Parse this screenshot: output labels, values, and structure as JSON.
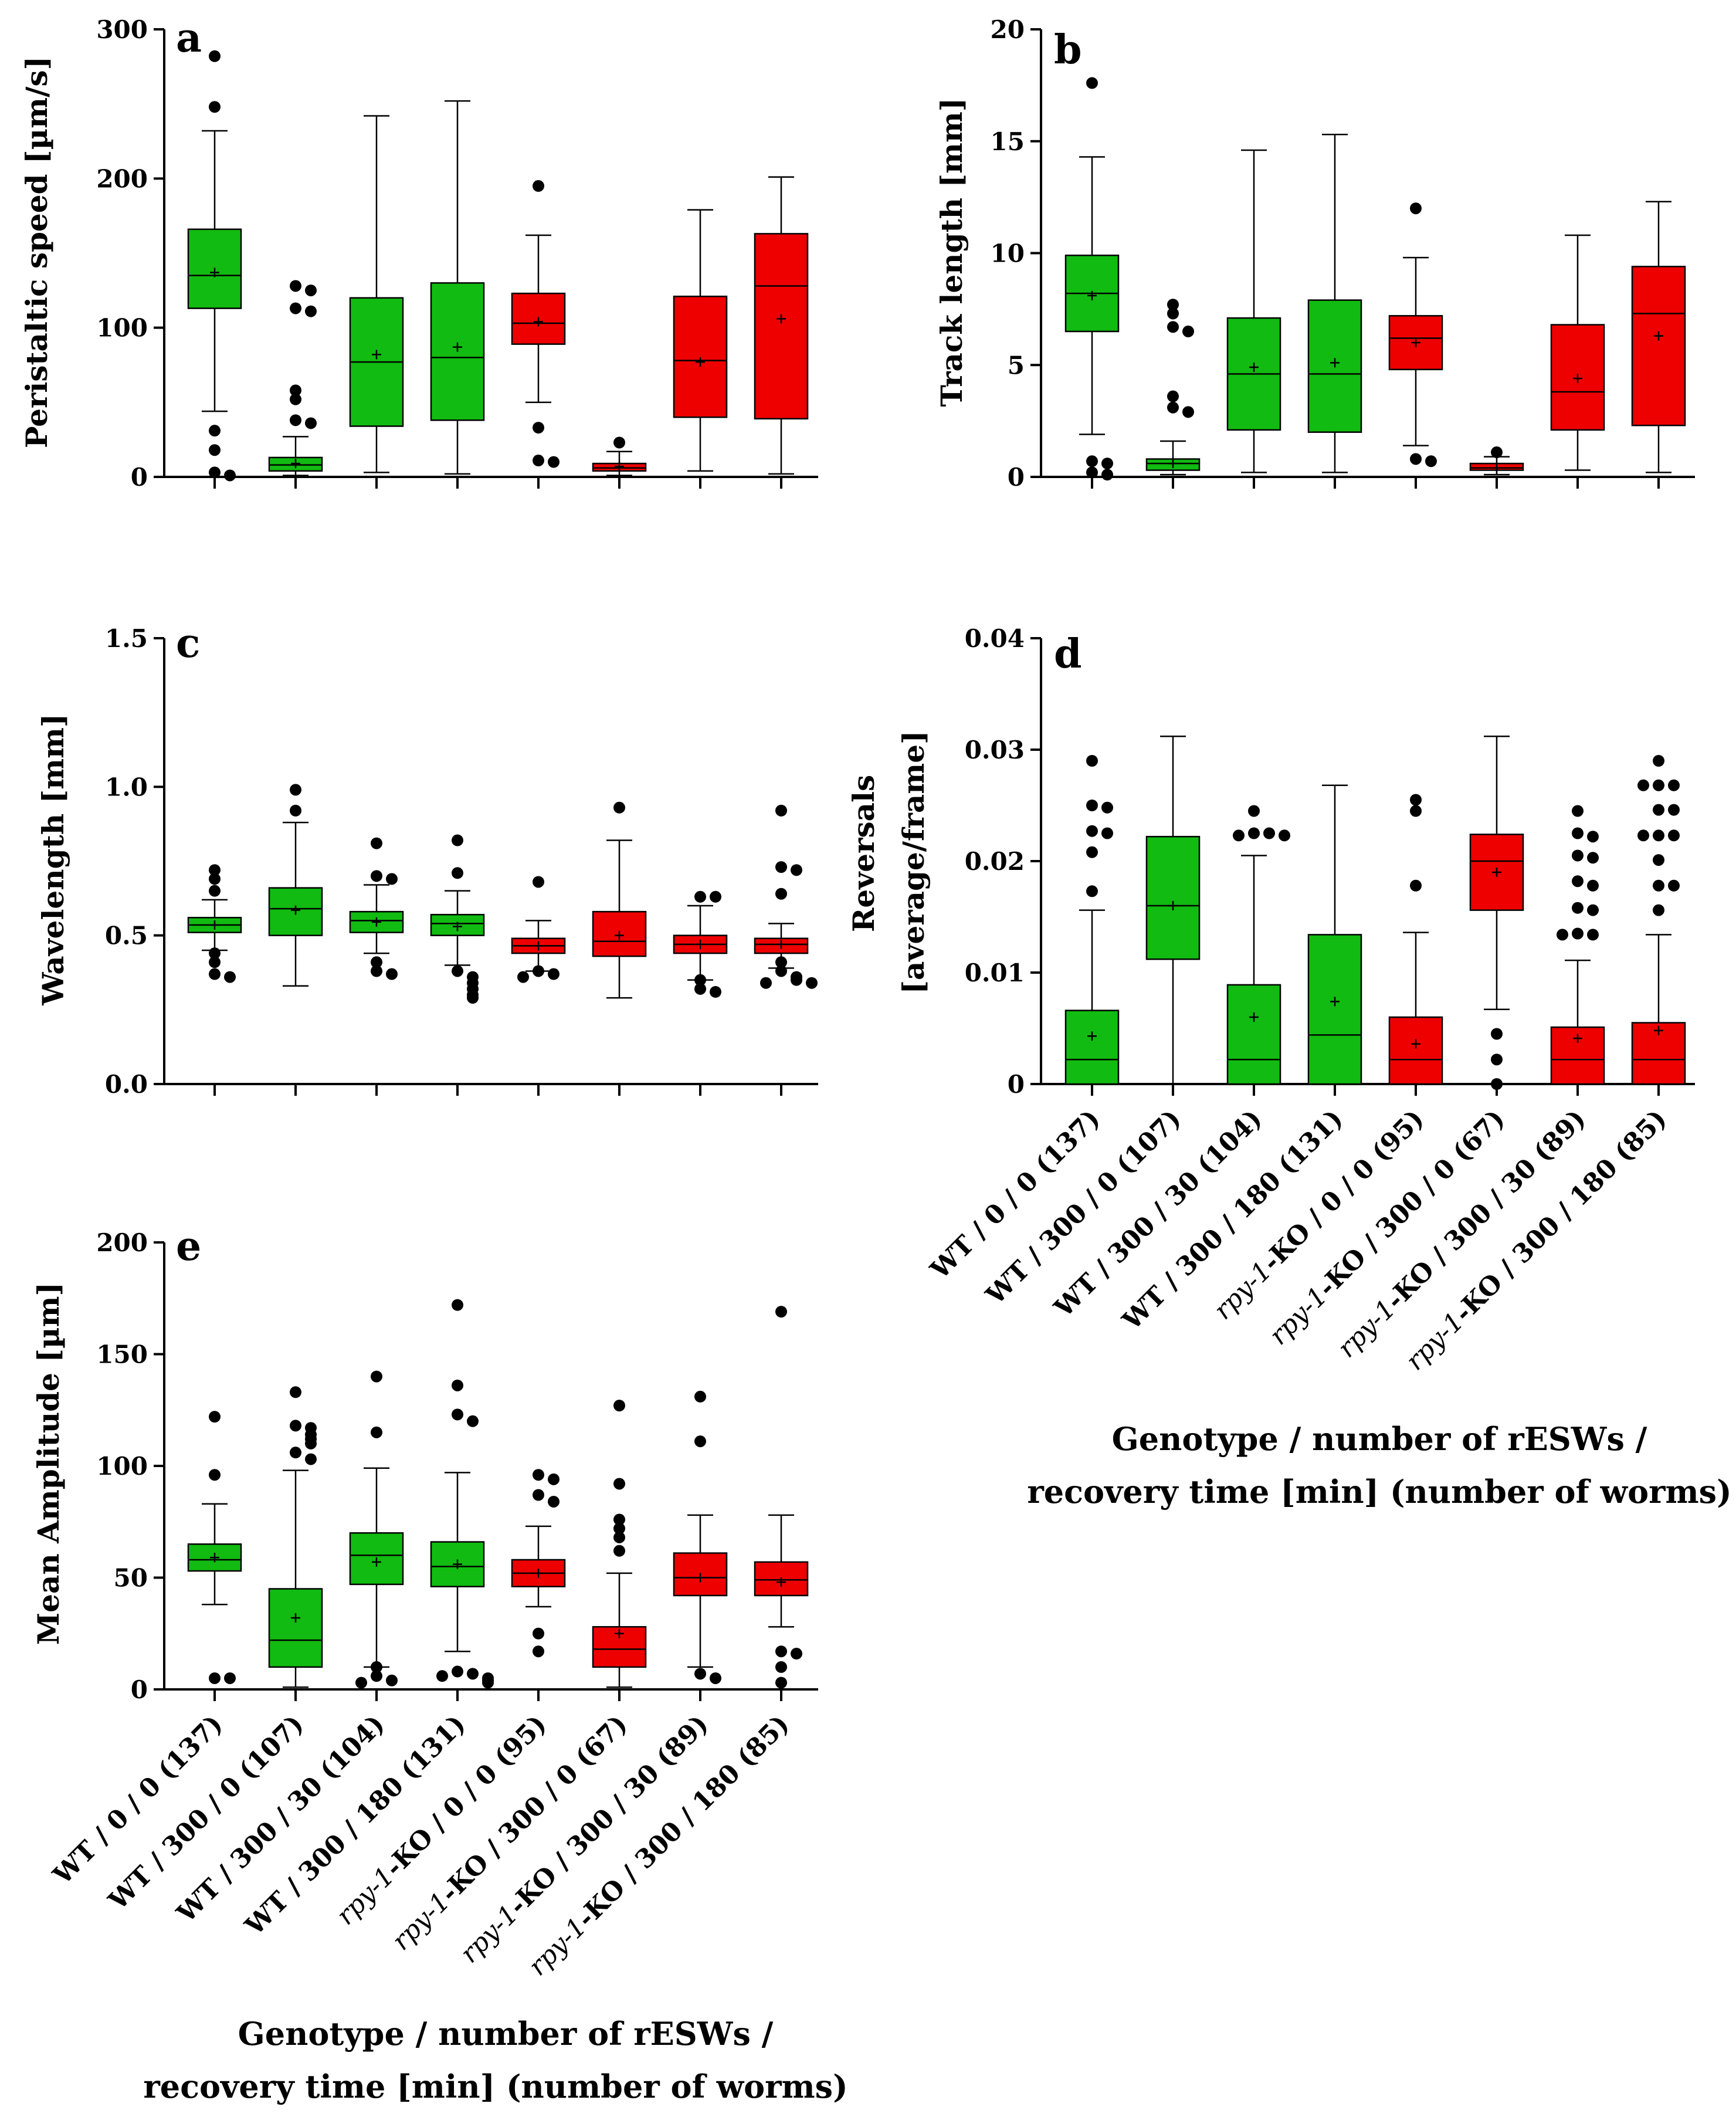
{
  "colors": {
    "green": "#11bb11",
    "red": "#ee0000",
    "wt": "green",
    "ko": "red"
  },
  "categories": [
    "WT / 0 / 0 (137)",
    "WT / 300 / 0 (107)",
    "WT / 300 / 30 (104)",
    "WT / 300 / 180 (131)",
    "rpy-1-KO / 0 / 0 (95)",
    "rpy-1-KO / 300 / 0 (67)",
    "rpy-1-KO / 300 / 30 (89)",
    "rpy-1-KO / 300 / 180 (85)"
  ],
  "category_groups": [
    "WT",
    "WT",
    "WT",
    "WT",
    "KO",
    "KO",
    "KO",
    "KO"
  ],
  "xlabel_lines": [
    "Genotype / number of rESWs /",
    "recovery time [min] (number of worms)"
  ],
  "chart_data": [
    {
      "type": "box",
      "panel": "a",
      "ylabel": [
        "Peristaltic speed [µm/s]"
      ],
      "ylim": [
        0,
        300
      ],
      "yticks": [
        0,
        100,
        200,
        300
      ],
      "grid": false,
      "series": [
        {
          "q1": 113,
          "median": 135,
          "q3": 166,
          "mean": 137,
          "wlo": 44,
          "whi": 232,
          "outliers": [
            282,
            248,
            31,
            18,
            3,
            1
          ]
        },
        {
          "q1": 4,
          "median": 8,
          "q3": 13,
          "mean": 9,
          "wlo": 1,
          "whi": 27,
          "outliers": [
            128,
            125,
            113,
            111,
            58,
            52,
            38,
            36
          ]
        },
        {
          "q1": 34,
          "median": 77,
          "q3": 120,
          "mean": 82,
          "wlo": 3,
          "whi": 242,
          "outliers": []
        },
        {
          "q1": 38,
          "median": 80,
          "q3": 130,
          "mean": 87,
          "wlo": 2,
          "whi": 252,
          "outliers": []
        },
        {
          "q1": 89,
          "median": 103,
          "q3": 123,
          "mean": 104,
          "wlo": 50,
          "whi": 162,
          "outliers": [
            195,
            33,
            11,
            10
          ]
        },
        {
          "q1": 4,
          "median": 6,
          "q3": 9,
          "mean": 7,
          "wlo": 1,
          "whi": 17,
          "outliers": [
            23
          ]
        },
        {
          "q1": 40,
          "median": 78,
          "q3": 121,
          "mean": 77,
          "wlo": 4,
          "whi": 179,
          "outliers": []
        },
        {
          "q1": 39,
          "median": 128,
          "q3": 163,
          "mean": 106,
          "wlo": 2,
          "whi": 201,
          "outliers": []
        }
      ]
    },
    {
      "type": "box",
      "panel": "b",
      "ylabel": [
        "Track length [mm]"
      ],
      "ylim": [
        0,
        20
      ],
      "yticks": [
        0,
        5,
        10,
        15,
        20
      ],
      "grid": false,
      "series": [
        {
          "q1": 6.5,
          "median": 8.2,
          "q3": 9.9,
          "mean": 8.1,
          "wlo": 1.9,
          "whi": 14.3,
          "outliers": [
            17.6,
            0.7,
            0.6,
            0.2,
            0.1
          ]
        },
        {
          "q1": 0.3,
          "median": 0.6,
          "q3": 0.8,
          "mean": 0.6,
          "wlo": 0.1,
          "whi": 1.6,
          "outliers": [
            7.7,
            7.3,
            6.7,
            6.5,
            3.6,
            3.1,
            2.9
          ]
        },
        {
          "q1": 2.1,
          "median": 4.6,
          "q3": 7.1,
          "mean": 4.9,
          "wlo": 0.2,
          "whi": 14.6,
          "outliers": []
        },
        {
          "q1": 2.0,
          "median": 4.6,
          "q3": 7.9,
          "mean": 5.1,
          "wlo": 0.2,
          "whi": 15.3,
          "outliers": []
        },
        {
          "q1": 4.8,
          "median": 6.2,
          "q3": 7.2,
          "mean": 6.0,
          "wlo": 1.4,
          "whi": 9.8,
          "outliers": [
            12.0,
            0.8,
            0.7
          ]
        },
        {
          "q1": 0.3,
          "median": 0.4,
          "q3": 0.6,
          "mean": 0.4,
          "wlo": 0.1,
          "whi": 0.9,
          "outliers": [
            1.1
          ]
        },
        {
          "q1": 2.1,
          "median": 3.8,
          "q3": 6.8,
          "mean": 4.4,
          "wlo": 0.3,
          "whi": 10.8,
          "outliers": []
        },
        {
          "q1": 2.3,
          "median": 7.3,
          "q3": 9.4,
          "mean": 6.3,
          "wlo": 0.2,
          "whi": 12.3,
          "outliers": []
        }
      ]
    },
    {
      "type": "box",
      "panel": "c",
      "ylabel": [
        "Wavelength [mm]"
      ],
      "ylim": [
        0,
        1.5
      ],
      "yticks": [
        0.0,
        0.5,
        1.0,
        1.5
      ],
      "ytick_labels": [
        "0.0",
        "0.5",
        "1.0",
        "1.5"
      ],
      "grid": false,
      "series": [
        {
          "q1": 0.51,
          "median": 0.535,
          "q3": 0.56,
          "mean": 0.535,
          "wlo": 0.45,
          "whi": 0.62,
          "outliers": [
            0.72,
            0.69,
            0.65,
            0.44,
            0.41,
            0.37,
            0.36
          ]
        },
        {
          "q1": 0.5,
          "median": 0.59,
          "q3": 0.66,
          "mean": 0.585,
          "wlo": 0.33,
          "whi": 0.88,
          "outliers": [
            0.99,
            0.92
          ]
        },
        {
          "q1": 0.51,
          "median": 0.55,
          "q3": 0.58,
          "mean": 0.545,
          "wlo": 0.44,
          "whi": 0.67,
          "outliers": [
            0.81,
            0.7,
            0.69,
            0.41,
            0.38,
            0.37
          ]
        },
        {
          "q1": 0.5,
          "median": 0.54,
          "q3": 0.57,
          "mean": 0.53,
          "wlo": 0.4,
          "whi": 0.65,
          "outliers": [
            0.82,
            0.71,
            0.38,
            0.36,
            0.34,
            0.32,
            0.3,
            0.29
          ]
        },
        {
          "q1": 0.44,
          "median": 0.465,
          "q3": 0.49,
          "mean": 0.465,
          "wlo": 0.38,
          "whi": 0.55,
          "outliers": [
            0.68,
            0.38,
            0.37,
            0.36
          ]
        },
        {
          "q1": 0.43,
          "median": 0.48,
          "q3": 0.58,
          "mean": 0.5,
          "wlo": 0.29,
          "whi": 0.82,
          "outliers": [
            0.93
          ]
        },
        {
          "q1": 0.44,
          "median": 0.47,
          "q3": 0.5,
          "mean": 0.47,
          "wlo": 0.35,
          "whi": 0.6,
          "outliers": [
            0.63,
            0.63,
            0.35,
            0.32,
            0.31
          ]
        },
        {
          "q1": 0.44,
          "median": 0.47,
          "q3": 0.49,
          "mean": 0.47,
          "wlo": 0.39,
          "whi": 0.54,
          "outliers": [
            0.92,
            0.73,
            0.72,
            0.64,
            0.41,
            0.38,
            0.36,
            0.35,
            0.34,
            0.34
          ]
        }
      ]
    },
    {
      "type": "box",
      "panel": "d",
      "ylabel": [
        "Reversals",
        "[average/frame]"
      ],
      "ylim": [
        0,
        0.04
      ],
      "yticks": [
        0,
        0.01,
        0.02,
        0.03,
        0.04
      ],
      "ytick_labels": [
        "0",
        "0.01",
        "0.02",
        "0.03",
        "0.04"
      ],
      "grid": false,
      "series": [
        {
          "q1": 0.0,
          "median": 0.0022,
          "q3": 0.0066,
          "mean": 0.0043,
          "wlo": 0.0,
          "whi": 0.0156,
          "outliers": [
            0.029,
            0.025,
            0.0248,
            0.0227,
            0.0225,
            0.0208,
            0.0173
          ]
        },
        {
          "q1": 0.0112,
          "median": 0.016,
          "q3": 0.0222,
          "mean": 0.016,
          "wlo": 0.0,
          "whi": 0.0312,
          "outliers": []
        },
        {
          "q1": 0.0,
          "median": 0.0022,
          "q3": 0.0089,
          "mean": 0.006,
          "wlo": 0.0,
          "whi": 0.0205,
          "outliers": [
            0.0245,
            0.0225,
            0.0225,
            0.0223,
            0.0223
          ]
        },
        {
          "q1": 0.0,
          "median": 0.0044,
          "q3": 0.0134,
          "mean": 0.0074,
          "wlo": 0.0,
          "whi": 0.0268,
          "outliers": []
        },
        {
          "q1": 0.0,
          "median": 0.0022,
          "q3": 0.006,
          "mean": 0.0036,
          "wlo": 0.0,
          "whi": 0.0136,
          "outliers": [
            0.0255,
            0.0245,
            0.0178
          ]
        },
        {
          "q1": 0.0156,
          "median": 0.02,
          "q3": 0.0224,
          "mean": 0.019,
          "wlo": 0.0067,
          "whi": 0.0312,
          "outliers": [
            0.0045,
            0.0022,
            0.0
          ]
        },
        {
          "q1": 0.0,
          "median": 0.0022,
          "q3": 0.0051,
          "mean": 0.0041,
          "wlo": 0.0,
          "whi": 0.0111,
          "outliers": [
            0.0245,
            0.0225,
            0.0222,
            0.0205,
            0.0203,
            0.0182,
            0.0178,
            0.0158,
            0.0156,
            0.0135,
            0.0134,
            0.0134
          ]
        },
        {
          "q1": 0.0,
          "median": 0.0022,
          "q3": 0.0055,
          "mean": 0.0048,
          "wlo": 0.0,
          "whi": 0.0134,
          "outliers": [
            0.029,
            0.0268,
            0.0268,
            0.0268,
            0.0246,
            0.0246,
            0.0223,
            0.0223,
            0.0223,
            0.0201,
            0.0178,
            0.0178,
            0.0156
          ]
        }
      ]
    },
    {
      "type": "box",
      "panel": "e",
      "ylabel": [
        "Mean Amplitude [µm]"
      ],
      "ylim": [
        0,
        200
      ],
      "yticks": [
        0,
        50,
        100,
        150,
        200
      ],
      "grid": false,
      "series": [
        {
          "q1": 53,
          "median": 58,
          "q3": 65,
          "mean": 59,
          "wlo": 38,
          "whi": 83,
          "outliers": [
            122,
            96,
            5,
            5
          ]
        },
        {
          "q1": 10,
          "median": 22,
          "q3": 45,
          "mean": 32,
          "wlo": 1,
          "whi": 98,
          "outliers": [
            133,
            118,
            117,
            114,
            112,
            110,
            106,
            103
          ]
        },
        {
          "q1": 47,
          "median": 60,
          "q3": 70,
          "mean": 57,
          "wlo": 10,
          "whi": 99,
          "outliers": [
            140,
            115,
            10,
            6,
            4,
            3
          ]
        },
        {
          "q1": 46,
          "median": 55,
          "q3": 66,
          "mean": 56,
          "wlo": 17,
          "whi": 97,
          "outliers": [
            172,
            136,
            123,
            120,
            8,
            7,
            6,
            5,
            4,
            3
          ]
        },
        {
          "q1": 46,
          "median": 52,
          "q3": 58,
          "mean": 52,
          "wlo": 37,
          "whi": 73,
          "outliers": [
            96,
            94,
            87,
            84,
            25,
            17
          ]
        },
        {
          "q1": 10,
          "median": 18,
          "q3": 28,
          "mean": 25,
          "wlo": 1,
          "whi": 52,
          "outliers": [
            127,
            92,
            76,
            72,
            68,
            62
          ]
        },
        {
          "q1": 42,
          "median": 50,
          "q3": 61,
          "mean": 50,
          "wlo": 10,
          "whi": 78,
          "outliers": [
            131,
            111,
            7,
            5
          ]
        },
        {
          "q1": 42,
          "median": 49,
          "q3": 57,
          "mean": 48,
          "wlo": 28,
          "whi": 78,
          "outliers": [
            169,
            17,
            16,
            10,
            3
          ]
        }
      ]
    }
  ]
}
